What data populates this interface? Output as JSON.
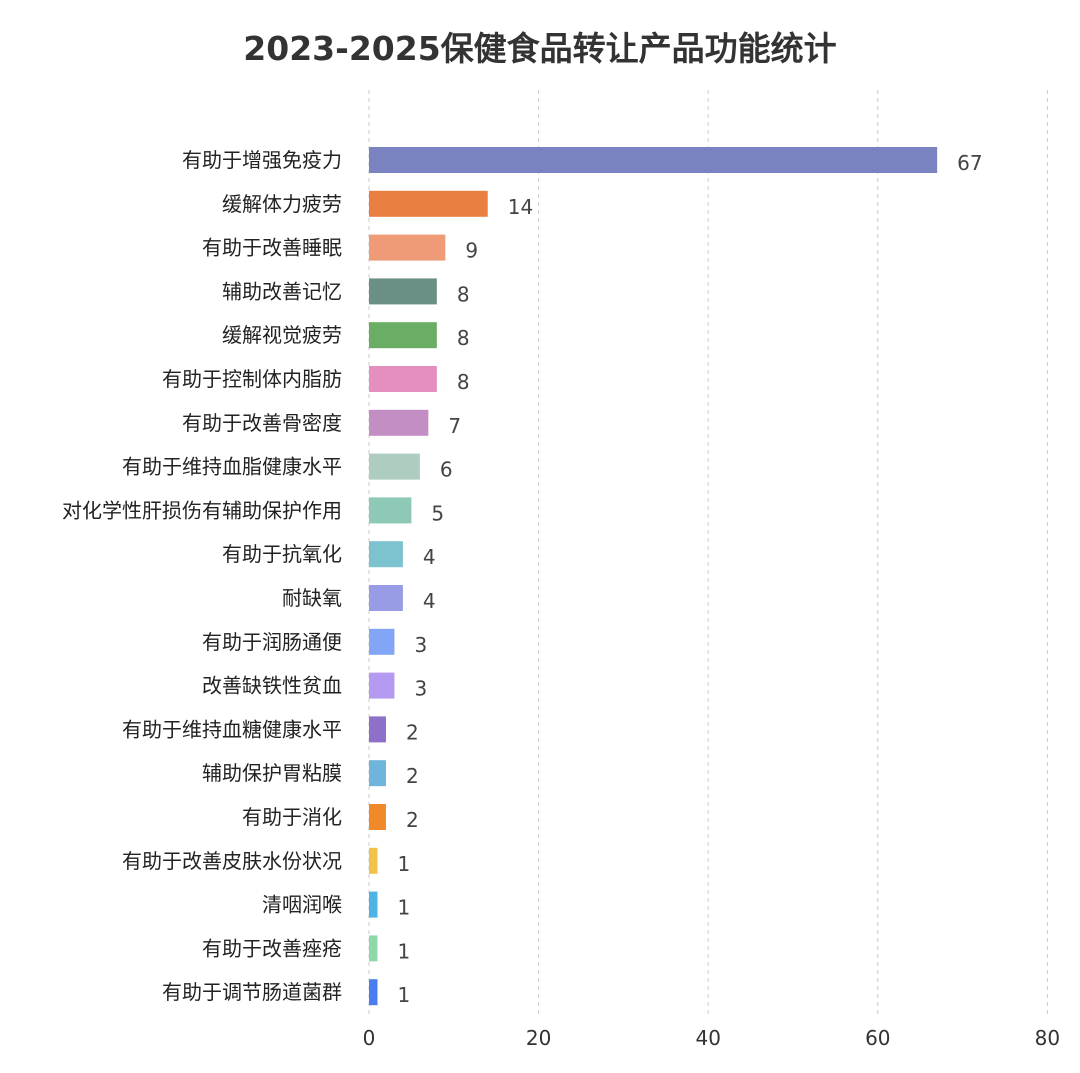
{
  "chart_data": {
    "type": "bar",
    "orientation": "horizontal",
    "title": "2023-2025保健食品转让产品功能统计",
    "xlim": [
      0,
      80
    ],
    "xticks": [
      0,
      20,
      40,
      60,
      80
    ],
    "grid": "vertical-dashed",
    "legend": "none",
    "categories": [
      "有助于增强免疫力",
      "缓解体力疲劳",
      "有助于改善睡眠",
      "辅助改善记忆",
      "缓解视觉疲劳",
      "有助于控制体内脂肪",
      "有助于改善骨密度",
      "有助于维持血脂健康水平",
      "对化学性肝损伤有辅助保护作用",
      "有助于抗氧化",
      "耐缺氧",
      "有助于润肠通便",
      "改善缺铁性贫血",
      "有助于维持血糖健康水平",
      "辅助保护胃粘膜",
      "有助于消化",
      "有助于改善皮肤水份状况",
      "清咽润喉",
      "有助于改善痤疮",
      "有助于调节肠道菌群"
    ],
    "values": [
      67,
      14,
      9,
      8,
      8,
      8,
      7,
      6,
      5,
      4,
      4,
      3,
      3,
      2,
      2,
      2,
      1,
      1,
      1,
      1
    ],
    "colors": [
      "#7b82c0",
      "#ea7f42",
      "#ef9b78",
      "#6a8f84",
      "#6aad64",
      "#e58fbf",
      "#c38ec3",
      "#aecdbf",
      "#8ec8b6",
      "#7cc3cf",
      "#979ce5",
      "#82a6f5",
      "#b49af0",
      "#8e70c9",
      "#6eb4db",
      "#f08a28",
      "#f2c24a",
      "#4eb4e6",
      "#8fd9a8",
      "#4a7ef0"
    ]
  }
}
